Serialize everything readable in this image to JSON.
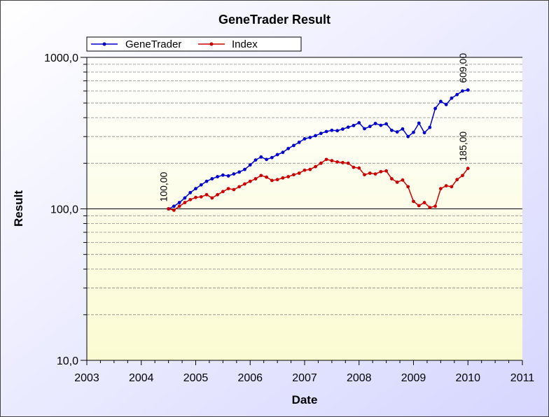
{
  "chart_data": {
    "type": "line",
    "title": "GeneTrader Result",
    "xlabel": "Date",
    "ylabel": "Result",
    "xlim": [
      2003,
      2011
    ],
    "ylim": [
      10,
      1000
    ],
    "y_scale": "log",
    "x_ticks": [
      "2003",
      "2004",
      "2005",
      "2006",
      "2007",
      "2008",
      "2009",
      "2010",
      "2011"
    ],
    "y_ticks": [
      "10,0",
      "100,0",
      "1000,0"
    ],
    "grid": true,
    "legend_position": "top-left",
    "series": [
      {
        "name": "GeneTrader",
        "color": "#0000cc",
        "x": [
          2004.5,
          2004.6,
          2004.7,
          2004.8,
          2004.9,
          2005.0,
          2005.1,
          2005.2,
          2005.3,
          2005.4,
          2005.5,
          2005.6,
          2005.7,
          2005.8,
          2005.9,
          2006.0,
          2006.1,
          2006.2,
          2006.3,
          2006.4,
          2006.5,
          2006.6,
          2006.7,
          2006.8,
          2006.9,
          2007.0,
          2007.1,
          2007.2,
          2007.3,
          2007.4,
          2007.5,
          2007.6,
          2007.7,
          2007.8,
          2007.9,
          2008.0,
          2008.1,
          2008.2,
          2008.3,
          2008.4,
          2008.5,
          2008.6,
          2008.7,
          2008.8,
          2008.9,
          2009.0,
          2009.1,
          2009.2,
          2009.3,
          2009.4,
          2009.5,
          2009.6,
          2009.7,
          2009.8,
          2009.9,
          2010.0
        ],
        "values": [
          100,
          104,
          110,
          118,
          128,
          136,
          144,
          152,
          158,
          163,
          167,
          165,
          170,
          175,
          182,
          195,
          210,
          220,
          212,
          218,
          228,
          236,
          250,
          262,
          275,
          290,
          296,
          304,
          315,
          324,
          330,
          328,
          336,
          346,
          355,
          370,
          338,
          350,
          366,
          356,
          364,
          330,
          322,
          337,
          300,
          320,
          368,
          318,
          345,
          460,
          512,
          488,
          538,
          568,
          600,
          609
        ]
      },
      {
        "name": "Index",
        "color": "#cc0000",
        "x": [
          2004.5,
          2004.6,
          2004.7,
          2004.8,
          2004.9,
          2005.0,
          2005.1,
          2005.2,
          2005.3,
          2005.4,
          2005.5,
          2005.6,
          2005.7,
          2005.8,
          2005.9,
          2006.0,
          2006.1,
          2006.2,
          2006.3,
          2006.4,
          2006.5,
          2006.6,
          2006.7,
          2006.8,
          2006.9,
          2007.0,
          2007.1,
          2007.2,
          2007.3,
          2007.4,
          2007.5,
          2007.6,
          2007.7,
          2007.8,
          2007.9,
          2008.0,
          2008.1,
          2008.2,
          2008.3,
          2008.4,
          2008.5,
          2008.6,
          2008.7,
          2008.8,
          2008.9,
          2009.0,
          2009.1,
          2009.2,
          2009.3,
          2009.4,
          2009.5,
          2009.6,
          2009.7,
          2009.8,
          2009.9,
          2010.0
        ],
        "values": [
          100,
          98,
          104,
          110,
          115,
          119,
          120,
          124,
          118,
          124,
          130,
          136,
          134,
          140,
          146,
          152,
          158,
          166,
          162,
          154,
          156,
          160,
          163,
          168,
          172,
          180,
          182,
          190,
          200,
          212,
          208,
          204,
          202,
          200,
          188,
          186,
          168,
          172,
          170,
          176,
          178,
          158,
          150,
          155,
          140,
          112,
          105,
          110,
          102,
          104,
          136,
          142,
          140,
          156,
          166,
          185
        ]
      }
    ],
    "annotations": [
      {
        "series": "GeneTrader",
        "x": 2004.5,
        "y": 100,
        "label": "100,00"
      },
      {
        "series": "GeneTrader",
        "x": 2010.0,
        "y": 609,
        "label": "609,00"
      },
      {
        "series": "Index",
        "x": 2010.0,
        "y": 185,
        "label": "185,00"
      }
    ]
  }
}
